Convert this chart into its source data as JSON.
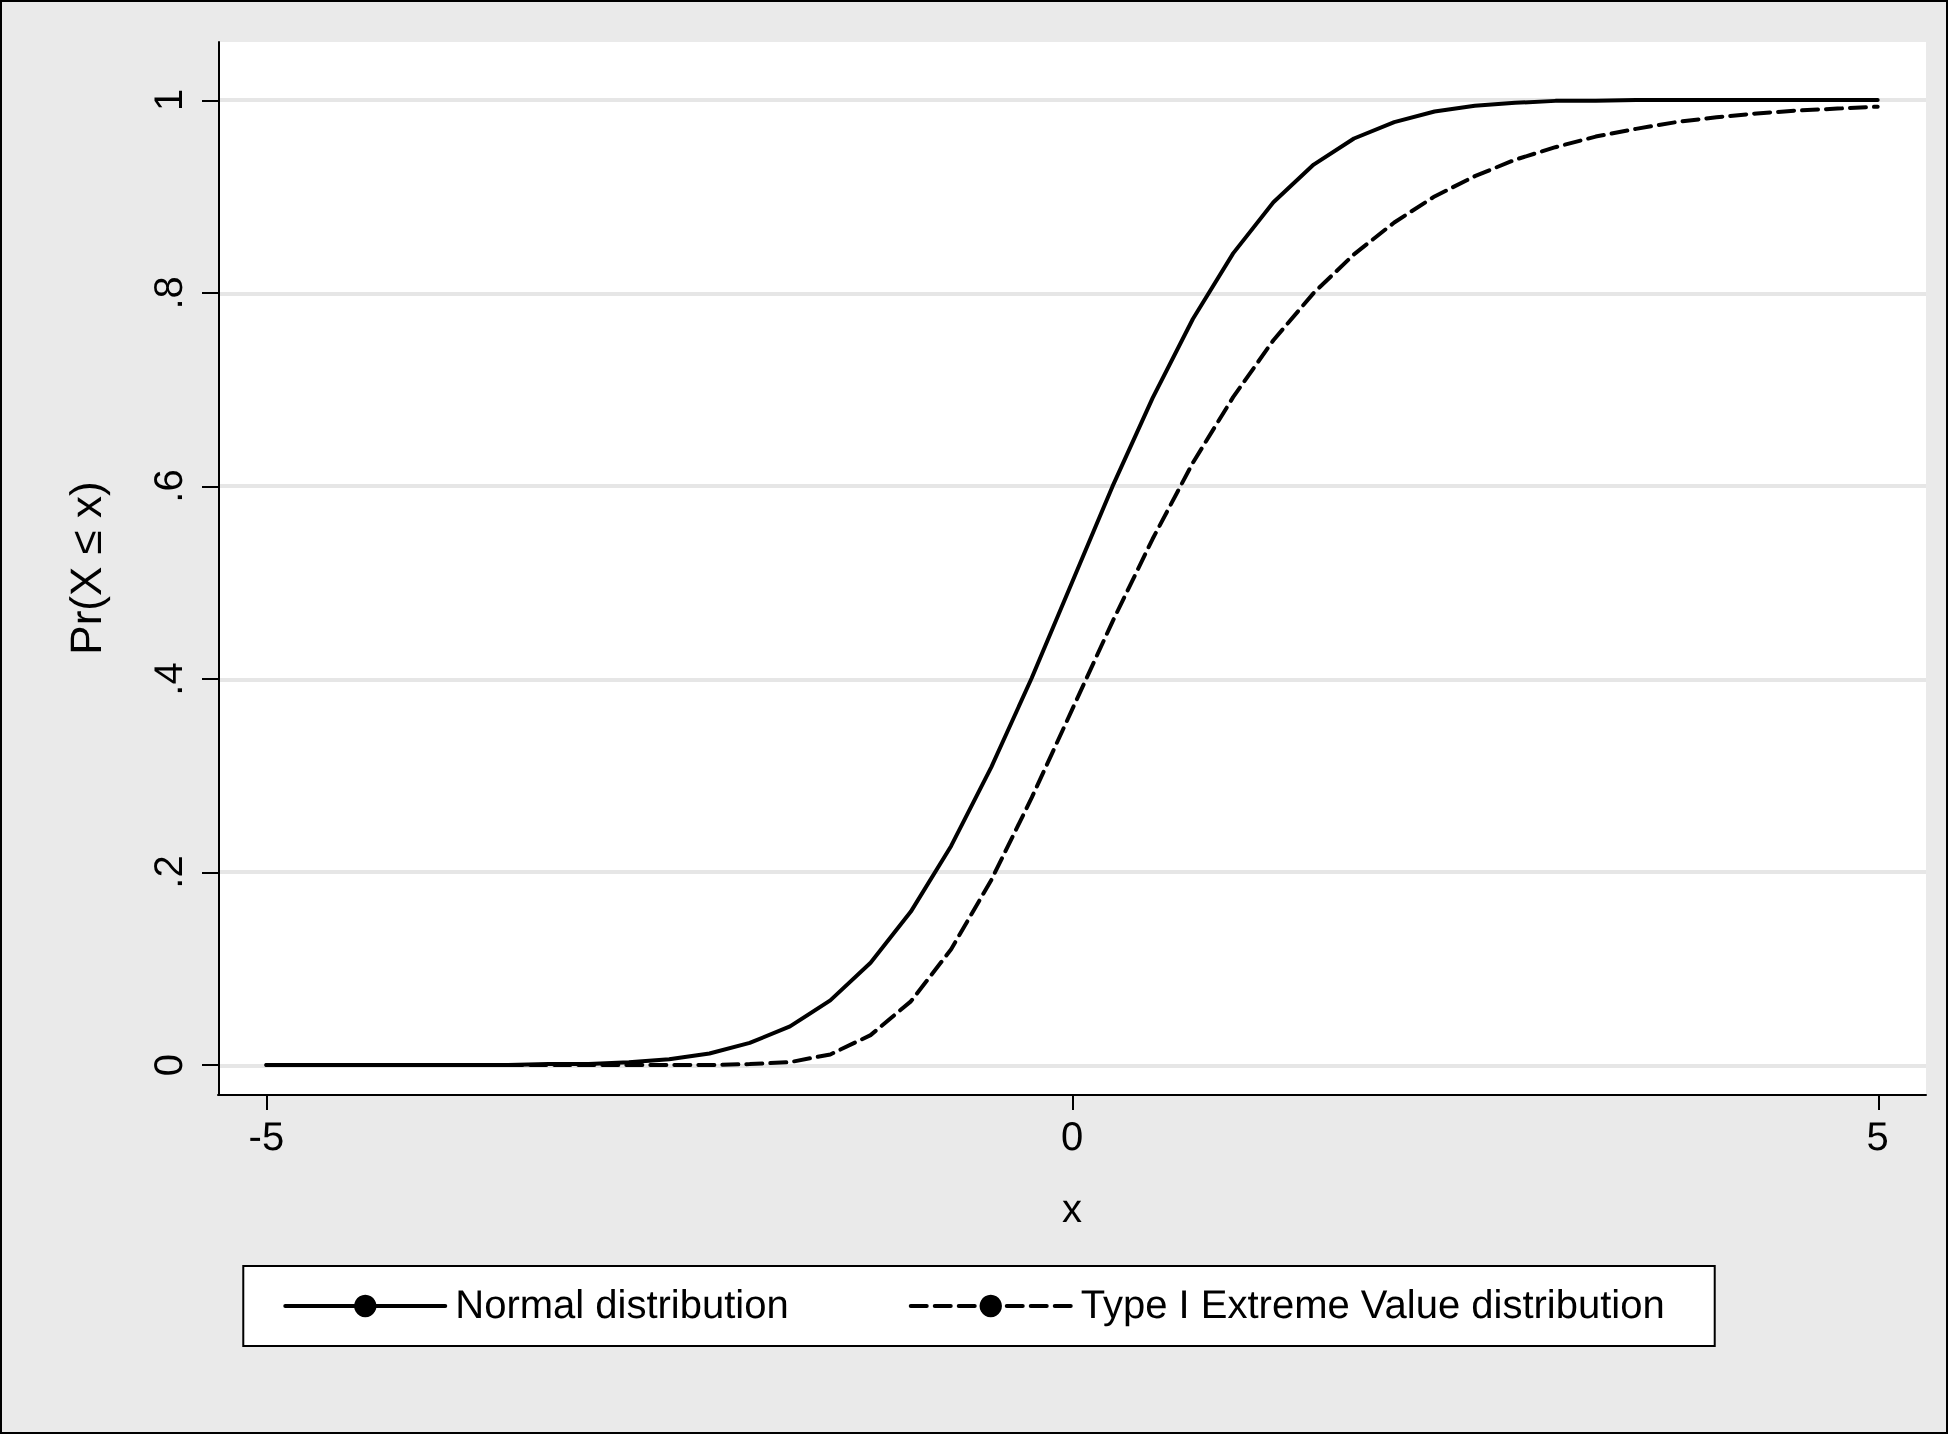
{
  "chart_data": {
    "type": "line",
    "xlabel": "x",
    "ylabel": "Pr(X ≤ x)",
    "x": [
      -5,
      -4.75,
      -4.5,
      -4.25,
      -4,
      -3.75,
      -3.5,
      -3.25,
      -3,
      -2.75,
      -2.5,
      -2.25,
      -2,
      -1.75,
      -1.5,
      -1.25,
      -1,
      -0.75,
      -0.5,
      -0.25,
      0,
      0.25,
      0.5,
      0.75,
      1,
      1.25,
      1.5,
      1.75,
      2,
      2.25,
      2.5,
      2.75,
      3,
      3.25,
      3.5,
      3.75,
      4,
      4.25,
      4.5,
      4.75,
      5
    ],
    "series": [
      {
        "name": "Normal distribution",
        "color": "#000000",
        "line_style": "solid",
        "values": [
          0,
          0,
          0,
          0,
          0,
          0,
          0,
          0.001,
          0.001,
          0.003,
          0.006,
          0.012,
          0.023,
          0.04,
          0.067,
          0.106,
          0.159,
          0.227,
          0.309,
          0.401,
          0.5,
          0.599,
          0.691,
          0.773,
          0.841,
          0.894,
          0.933,
          0.96,
          0.977,
          0.988,
          0.994,
          0.997,
          0.999,
          0.999,
          1,
          1,
          1,
          1,
          1,
          1,
          1
        ]
      },
      {
        "name": "Type I Extreme Value distribution",
        "color": "#000000",
        "line_style": "dashed",
        "values": [
          0,
          0,
          0,
          0,
          0,
          0,
          0,
          0,
          0,
          0,
          0,
          0,
          0.001,
          0.003,
          0.011,
          0.031,
          0.066,
          0.12,
          0.192,
          0.277,
          0.368,
          0.459,
          0.545,
          0.624,
          0.692,
          0.751,
          0.8,
          0.84,
          0.873,
          0.9,
          0.921,
          0.938,
          0.951,
          0.962,
          0.97,
          0.977,
          0.982,
          0.986,
          0.989,
          0.991,
          0.993
        ]
      }
    ],
    "xlim": [
      -5.3,
      5.3
    ],
    "xticks": [
      -5,
      0,
      5
    ],
    "ylim": [
      -0.03,
      1.06
    ],
    "yticks": [
      0,
      {
        "value": 0.2,
        "label": ".2"
      },
      {
        "value": 0.4,
        "label": ".4"
      },
      {
        "value": 0.6,
        "label": ".6"
      },
      {
        "value": 0.8,
        "label": ".8"
      },
      1
    ],
    "grid": "y",
    "legend": "bottom",
    "marker": "none"
  }
}
